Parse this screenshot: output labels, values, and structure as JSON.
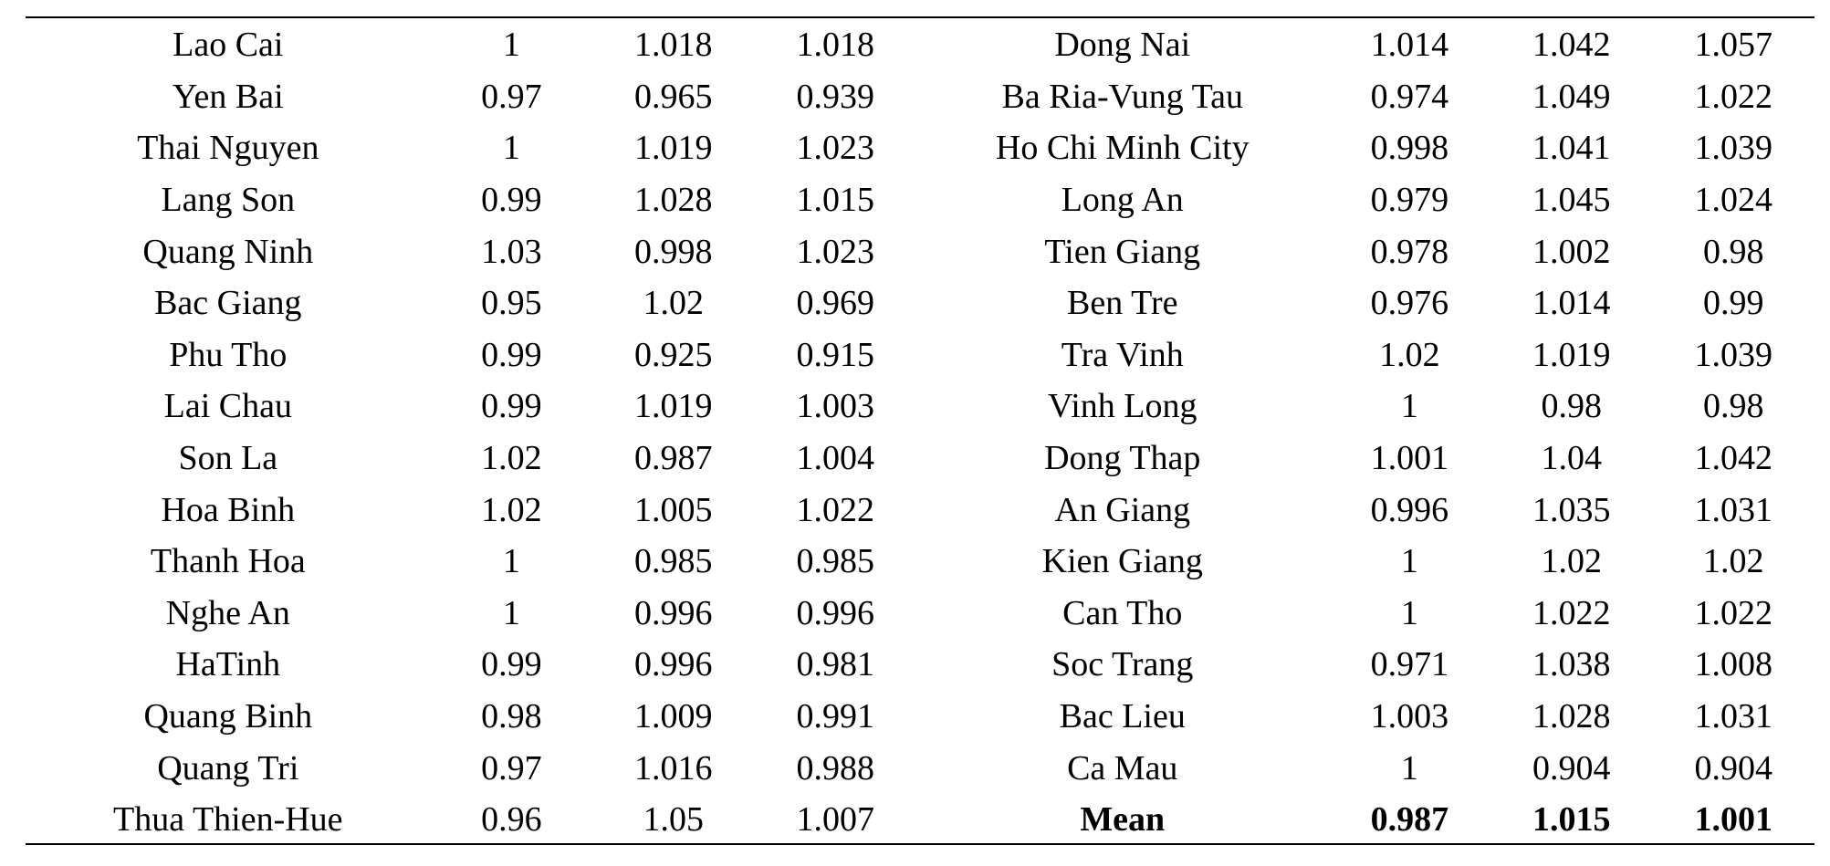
{
  "rows": [
    {
      "left": {
        "province": "Lao Cai",
        "v1": "1",
        "v2": "1.018",
        "v3": "1.018"
      },
      "right": {
        "province": "Dong Nai",
        "v1": "1.014",
        "v2": "1.042",
        "v3": "1.057"
      }
    },
    {
      "left": {
        "province": "Yen Bai",
        "v1": "0.97",
        "v2": "0.965",
        "v3": "0.939"
      },
      "right": {
        "province": "Ba Ria-Vung Tau",
        "v1": "0.974",
        "v2": "1.049",
        "v3": "1.022"
      }
    },
    {
      "left": {
        "province": "Thai Nguyen",
        "v1": "1",
        "v2": "1.019",
        "v3": "1.023"
      },
      "right": {
        "province": "Ho Chi Minh City",
        "v1": "0.998",
        "v2": "1.041",
        "v3": "1.039"
      }
    },
    {
      "left": {
        "province": "Lang Son",
        "v1": "0.99",
        "v2": "1.028",
        "v3": "1.015"
      },
      "right": {
        "province": "Long An",
        "v1": "0.979",
        "v2": "1.045",
        "v3": "1.024"
      }
    },
    {
      "left": {
        "province": "Quang Ninh",
        "v1": "1.03",
        "v2": "0.998",
        "v3": "1.023"
      },
      "right": {
        "province": "Tien Giang",
        "v1": "0.978",
        "v2": "1.002",
        "v3": "0.98"
      }
    },
    {
      "left": {
        "province": "Bac Giang",
        "v1": "0.95",
        "v2": "1.02",
        "v3": "0.969"
      },
      "right": {
        "province": "Ben Tre",
        "v1": "0.976",
        "v2": "1.014",
        "v3": "0.99"
      }
    },
    {
      "left": {
        "province": "Phu Tho",
        "v1": "0.99",
        "v2": "0.925",
        "v3": "0.915"
      },
      "right": {
        "province": "Tra Vinh",
        "v1": "1.02",
        "v2": "1.019",
        "v3": "1.039"
      }
    },
    {
      "left": {
        "province": "Lai Chau",
        "v1": "0.99",
        "v2": "1.019",
        "v3": "1.003"
      },
      "right": {
        "province": "Vinh Long",
        "v1": "1",
        "v2": "0.98",
        "v3": "0.98"
      }
    },
    {
      "left": {
        "province": "Son La",
        "v1": "1.02",
        "v2": "0.987",
        "v3": "1.004"
      },
      "right": {
        "province": "Dong Thap",
        "v1": "1.001",
        "v2": "1.04",
        "v3": "1.042"
      }
    },
    {
      "left": {
        "province": "Hoa Binh",
        "v1": "1.02",
        "v2": "1.005",
        "v3": "1.022"
      },
      "right": {
        "province": "An Giang",
        "v1": "0.996",
        "v2": "1.035",
        "v3": "1.031"
      }
    },
    {
      "left": {
        "province": "Thanh Hoa",
        "v1": "1",
        "v2": "0.985",
        "v3": "0.985"
      },
      "right": {
        "province": "Kien Giang",
        "v1": "1",
        "v2": "1.02",
        "v3": "1.02"
      }
    },
    {
      "left": {
        "province": "Nghe An",
        "v1": "1",
        "v2": "0.996",
        "v3": "0.996"
      },
      "right": {
        "province": "Can Tho",
        "v1": "1",
        "v2": "1.022",
        "v3": "1.022"
      }
    },
    {
      "left": {
        "province": "HaTinh",
        "v1": "0.99",
        "v2": "0.996",
        "v3": "0.981"
      },
      "right": {
        "province": "Soc Trang",
        "v1": "0.971",
        "v2": "1.038",
        "v3": "1.008"
      }
    },
    {
      "left": {
        "province": "Quang Binh",
        "v1": "0.98",
        "v2": "1.009",
        "v3": "0.991"
      },
      "right": {
        "province": "Bac Lieu",
        "v1": "1.003",
        "v2": "1.028",
        "v3": "1.031"
      }
    },
    {
      "left": {
        "province": "Quang Tri",
        "v1": "0.97",
        "v2": "1.016",
        "v3": "0.988"
      },
      "right": {
        "province": "Ca Mau",
        "v1": "1",
        "v2": "0.904",
        "v3": "0.904"
      }
    },
    {
      "left": {
        "province": "Thua Thien-Hue",
        "v1": "0.96",
        "v2": "1.05",
        "v3": "1.007"
      },
      "right": {
        "province": "Mean",
        "v1": "0.987",
        "v2": "1.015",
        "v3": "1.001"
      }
    }
  ]
}
